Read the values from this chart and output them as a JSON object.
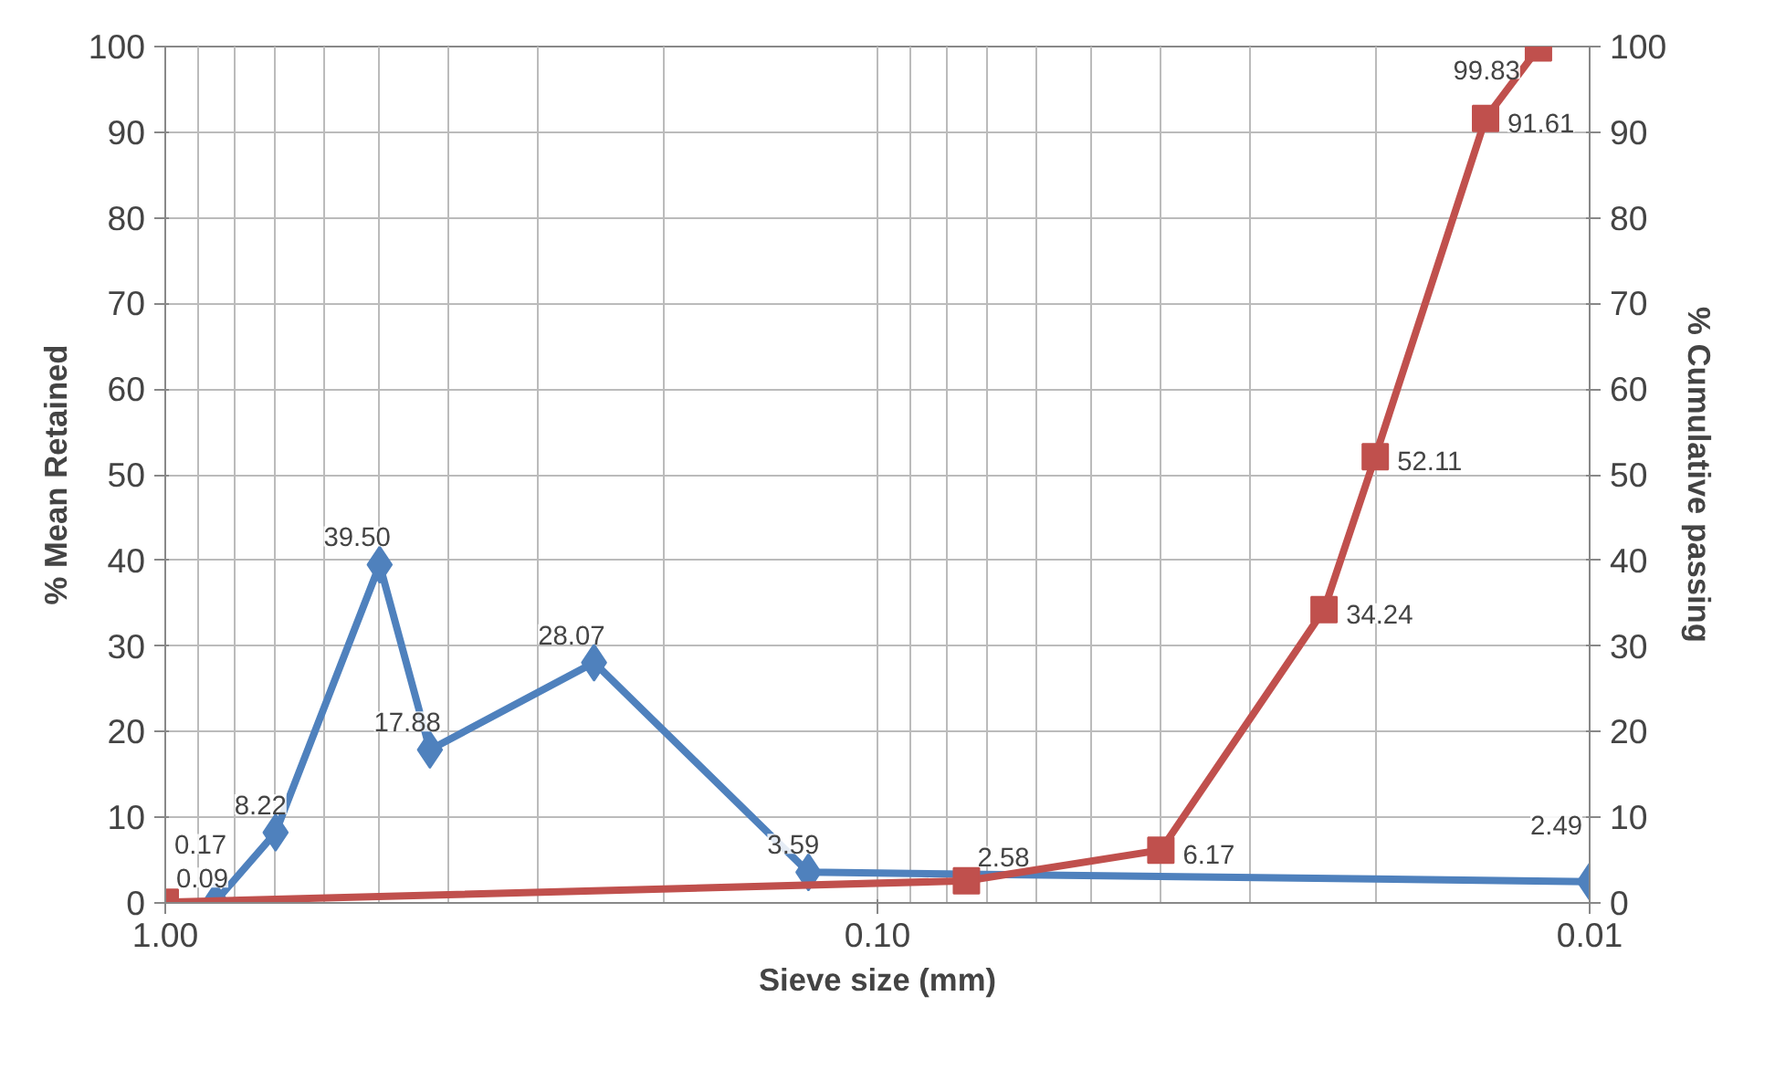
{
  "chart_data": {
    "type": "line",
    "xlabel": "Sieve size (mm)",
    "ylabel": "% Mean Retained",
    "y2label": "% Cumulative passing",
    "log": "x",
    "xlim": [
      1,
      0.01
    ],
    "xticks": [
      {
        "value": 1,
        "label": "1.00"
      },
      {
        "value": 0.1,
        "label": "0.10"
      },
      {
        "value": 0.01,
        "label": "0.01"
      }
    ],
    "ylim": [
      0,
      100
    ],
    "yticks": [
      0,
      10,
      20,
      30,
      40,
      50,
      60,
      70,
      80,
      90,
      100
    ],
    "y2lim": [
      0,
      100
    ],
    "y2ticks": [
      0,
      10,
      20,
      30,
      40,
      50,
      60,
      70,
      80,
      90,
      100
    ],
    "grid": true,
    "line_style": "solid",
    "series": [
      {
        "color": "#4f81bd",
        "marker": "diamond",
        "x": [
          0.85,
          0.7,
          0.5,
          0.425,
          0.25,
          0.125,
          0.01
        ],
        "values": [
          0.17,
          8.22,
          39.5,
          17.88,
          28.07,
          3.59,
          2.49
        ],
        "value_labels": [
          "0.17",
          "8.22",
          "39.50",
          "17.88",
          "28.07",
          "3.59",
          "2.49"
        ]
      },
      {
        "color": "#c0504d",
        "marker": "square",
        "axis": "y2",
        "x": [
          1,
          0.075,
          0.04,
          0.0236,
          0.02,
          0.014,
          0.0118
        ],
        "values": [
          0.09,
          2.58,
          6.17,
          34.24,
          52.11,
          91.61,
          99.83
        ],
        "value_labels": [
          "0.09",
          "2.58",
          "6.17",
          "34.24",
          "52.11",
          "91.61",
          "99.83"
        ]
      }
    ]
  }
}
